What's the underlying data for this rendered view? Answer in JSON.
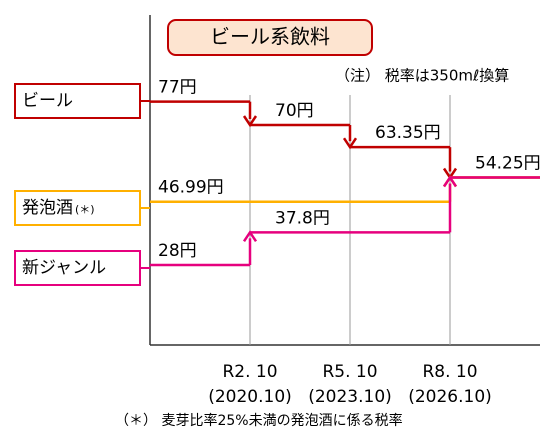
{
  "chart_data": {
    "type": "step",
    "title": "ビール系飲料",
    "note": "（注） 税率は350mℓ換算",
    "footnote": "（＊） 麦芽比率25%未満の発泡酒に係る税率",
    "categories": [
      null,
      "R2. 10",
      "R5. 10",
      "R8. 10"
    ],
    "category_sublabels": [
      null,
      "(2020.10)",
      "(2023.10)",
      "(2026.10)"
    ],
    "ylim": [
      4,
      103
    ],
    "series": [
      {
        "name": "ビール",
        "name_note": null,
        "color": "#c00000",
        "values": [
          77,
          70,
          63.35,
          54.25
        ],
        "value_labels": [
          "77円",
          "70円",
          "63.35円",
          "54.25円"
        ]
      },
      {
        "name": "発泡酒",
        "name_note": "(＊)",
        "color": "#ffb000",
        "values": [
          46.99,
          46.99,
          46.99,
          54.25
        ],
        "value_labels": [
          "46.99円",
          null,
          null,
          null
        ]
      },
      {
        "name": "新ジャンル",
        "name_note": null,
        "color": "#e6007e",
        "values": [
          28,
          37.8,
          37.8,
          54.25
        ],
        "value_labels": [
          "28円",
          "37.8円",
          null,
          null
        ]
      }
    ]
  }
}
